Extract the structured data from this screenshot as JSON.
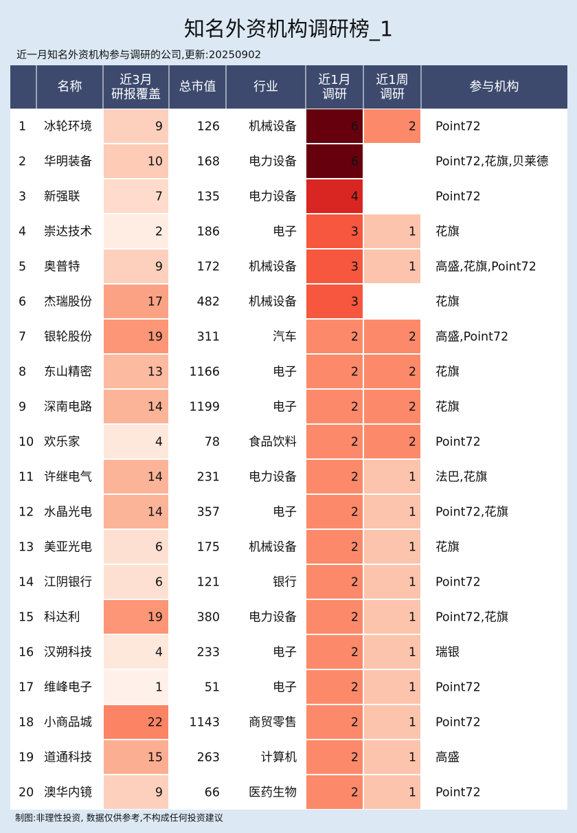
{
  "header": {
    "title": "知名外资机构调研榜_1",
    "subtitle": "近一月知名外资机构参与调研的公司,更新:20250902"
  },
  "table": {
    "columns": [
      [
        ""
      ],
      [
        "名称"
      ],
      [
        "近3月",
        "研报覆盖"
      ],
      [
        "总市值"
      ],
      [
        "行业"
      ],
      [
        "近1月",
        "调研"
      ],
      [
        "近1周",
        "调研"
      ],
      [
        "参与机构"
      ]
    ],
    "rows": [
      [
        1,
        "冰轮环境",
        9,
        126,
        "机械设备",
        6,
        2,
        "Point72"
      ],
      [
        2,
        "华明装备",
        10,
        168,
        "电力设备",
        6,
        null,
        "Point72,花旗,贝莱德"
      ],
      [
        3,
        "新强联",
        7,
        135,
        "电力设备",
        4,
        null,
        "Point72"
      ],
      [
        4,
        "崇达技术",
        2,
        186,
        "电子",
        3,
        1,
        "花旗"
      ],
      [
        5,
        "奥普特",
        9,
        172,
        "机械设备",
        3,
        1,
        "高盛,花旗,Point72"
      ],
      [
        6,
        "杰瑞股份",
        17,
        482,
        "机械设备",
        3,
        null,
        "花旗"
      ],
      [
        7,
        "银轮股份",
        19,
        311,
        "汽车",
        2,
        2,
        "高盛,Point72"
      ],
      [
        8,
        "东山精密",
        13,
        1166,
        "电子",
        2,
        2,
        "花旗"
      ],
      [
        9,
        "深南电路",
        14,
        1199,
        "电子",
        2,
        2,
        "花旗"
      ],
      [
        10,
        "欢乐家",
        4,
        78,
        "食品饮料",
        2,
        2,
        "Point72"
      ],
      [
        11,
        "许继电气",
        14,
        231,
        "电力设备",
        2,
        1,
        "法巴,花旗"
      ],
      [
        12,
        "水晶光电",
        14,
        357,
        "电子",
        2,
        1,
        "Point72,花旗"
      ],
      [
        13,
        "美亚光电",
        6,
        175,
        "机械设备",
        2,
        1,
        "花旗"
      ],
      [
        14,
        "江阴银行",
        6,
        121,
        "银行",
        2,
        1,
        "Point72"
      ],
      [
        15,
        "科达利",
        19,
        380,
        "电力设备",
        2,
        1,
        "Point72,花旗"
      ],
      [
        16,
        "汉朔科技",
        4,
        233,
        "电子",
        2,
        1,
        "瑞银"
      ],
      [
        17,
        "维峰电子",
        1,
        51,
        "电子",
        2,
        1,
        "Point72"
      ],
      [
        18,
        "小商品城",
        22,
        1143,
        "商贸零售",
        2,
        1,
        "Point72"
      ],
      [
        19,
        "道通科技",
        15,
        263,
        "计算机",
        2,
        1,
        "高盛"
      ],
      [
        20,
        "澳华内镜",
        9,
        66,
        "医药生物",
        2,
        1,
        "Point72"
      ]
    ]
  },
  "footer": {
    "note": "制图:非理性投资, 数据仅供参考,不构成任何投资建议"
  }
}
